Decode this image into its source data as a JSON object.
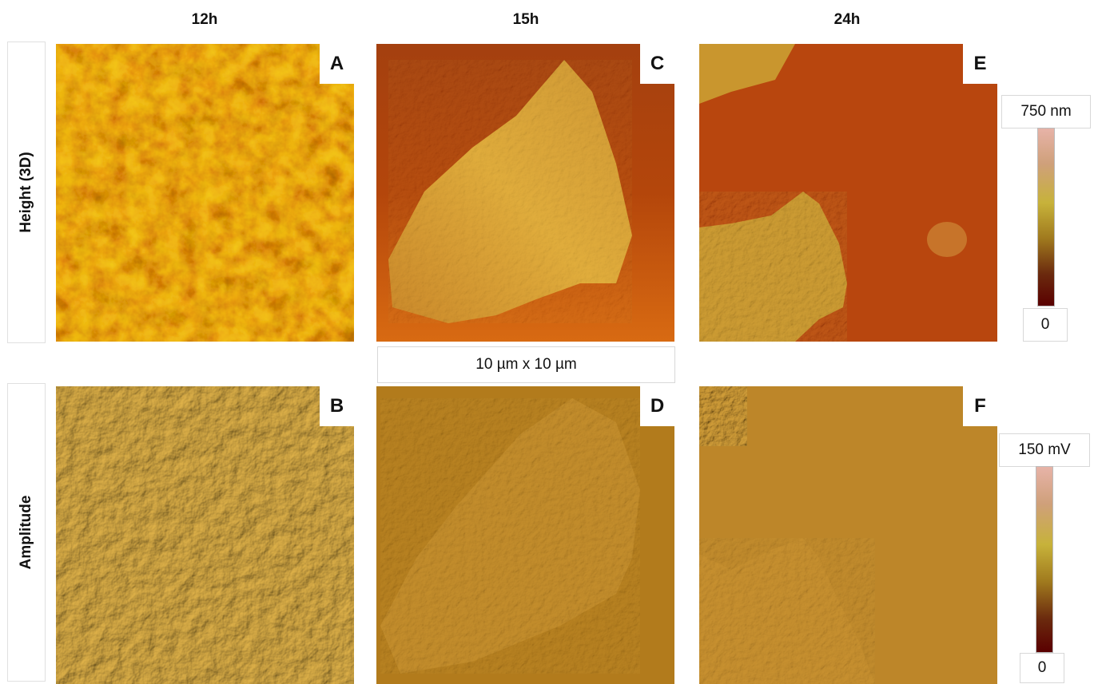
{
  "columns": [
    "12h",
    "15h",
    "24h"
  ],
  "rows": [
    "Height (3D)",
    "Amplitude"
  ],
  "panels": [
    "A",
    "B",
    "C",
    "D",
    "E",
    "F"
  ],
  "scan_size": "10 µm x 10 µm",
  "height_scale": {
    "max": "750 nm",
    "min": "0"
  },
  "amplitude_scale": {
    "max": "150 mV",
    "min": "0"
  },
  "colors": {
    "height_dark": "#6a1a05",
    "height_mid": "#b5520c",
    "height_light": "#d4a63a",
    "amp_base": "#b37d1f",
    "amp_light": "#d5a845"
  }
}
